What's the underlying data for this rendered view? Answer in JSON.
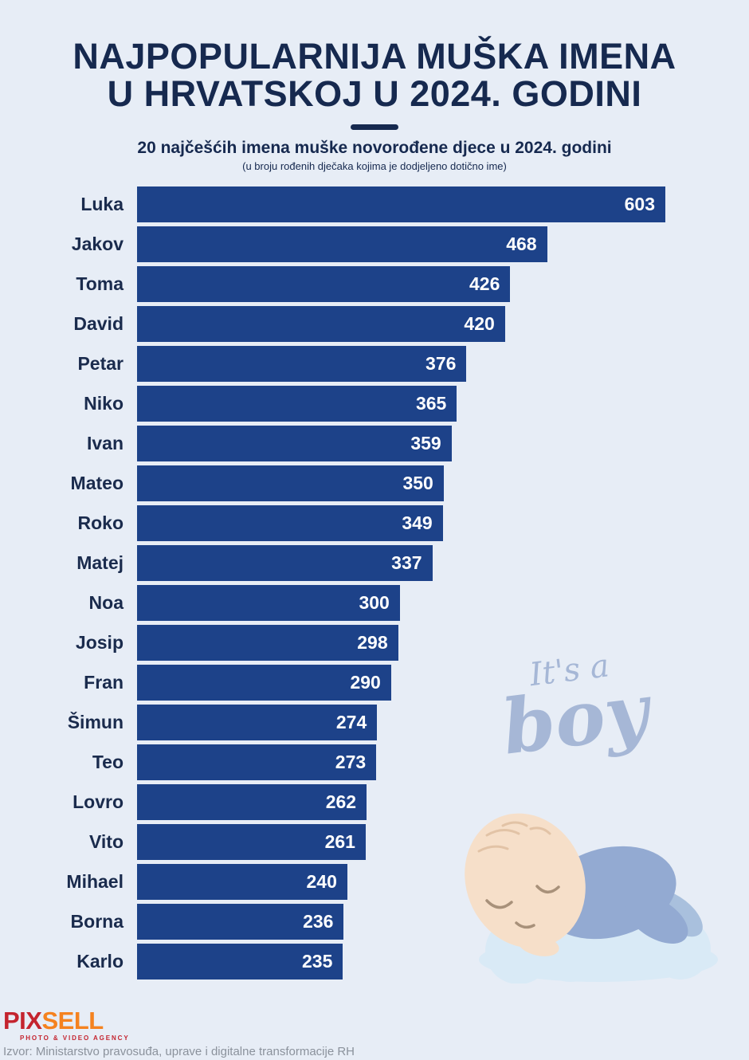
{
  "title": {
    "line1": "NAJPOPULARNIJA MUŠKA IMENA",
    "line2": "U HRVATSKOJ U 2024. GODINI"
  },
  "subtitle": "20 najčešćih imena muške novorođene djece u 2024. godini",
  "note": "(u broju rođenih dječaka kojima je dodjeljeno dotično ime)",
  "chart_data": {
    "type": "bar",
    "orientation": "horizontal",
    "title": "NAJPOPULARNIJA MUŠKA IMENA U HRVATSKOJ U 2024. GODINI",
    "subtitle": "20 najčešćih imena muške novorođene djece u 2024. godini",
    "categories": [
      "Luka",
      "Jakov",
      "Toma",
      "David",
      "Petar",
      "Niko",
      "Ivan",
      "Mateo",
      "Roko",
      "Matej",
      "Noa",
      "Josip",
      "Fran",
      "Šimun",
      "Teo",
      "Lovro",
      "Vito",
      "Mihael",
      "Borna",
      "Karlo"
    ],
    "values": [
      603,
      468,
      426,
      420,
      376,
      365,
      359,
      350,
      349,
      337,
      300,
      298,
      290,
      274,
      273,
      262,
      261,
      240,
      236,
      235
    ],
    "xlim": [
      0,
      603
    ],
    "value_labels": "inside-right",
    "bar_color": "#1d4289",
    "value_label_color": "#ffffff",
    "category_label_color": "#1a2b4d",
    "grid": false,
    "legend": false
  },
  "decoration": {
    "script_line1": "It's a",
    "script_line2": "boy",
    "script_color": "#a6b7d6",
    "baby_illustration": "sleeping-baby-on-cloud"
  },
  "footer": {
    "logo_part1": "PIX",
    "logo_part2": "SELL",
    "logo_color1": "#c4242f",
    "logo_color2": "#f5821f",
    "logo_tagline": "PHOTO & VIDEO AGENCY",
    "source": "Izvor: Ministarstvo pravosuđa, uprave i digitalne transformacije RH"
  },
  "colors": {
    "background": "#e7edf6",
    "title_text": "#16294f",
    "bar": "#1d4289",
    "divider": "#16294f"
  }
}
